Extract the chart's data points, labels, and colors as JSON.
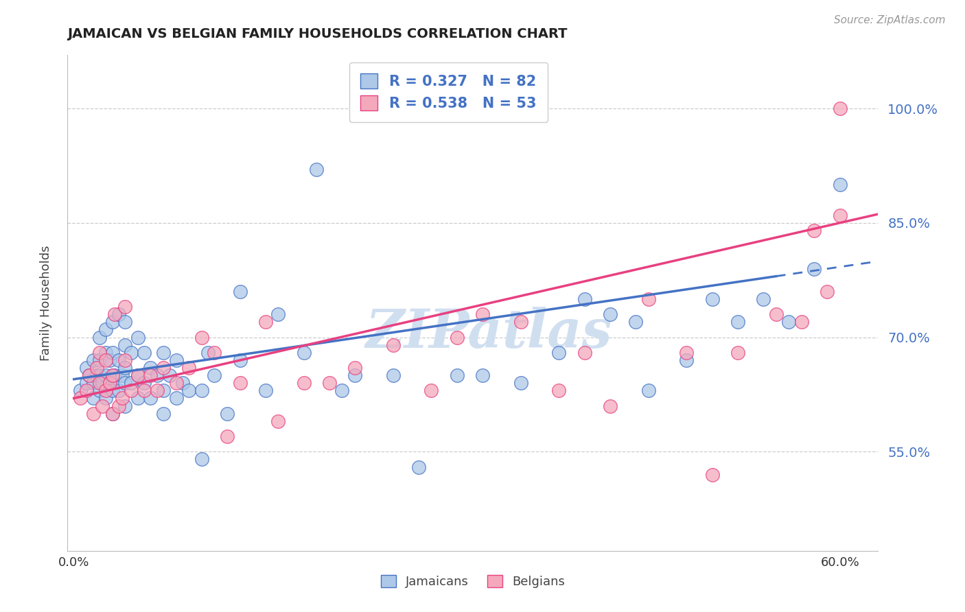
{
  "title": "JAMAICAN VS BELGIAN FAMILY HOUSEHOLDS CORRELATION CHART",
  "source": "Source: ZipAtlas.com",
  "ylabel": "Family Households",
  "legend_label1": "Jamaicans",
  "legend_label2": "Belgians",
  "R1": 0.327,
  "N1": 82,
  "R2": 0.538,
  "N2": 53,
  "xlim": [
    -0.005,
    0.63
  ],
  "ylim": [
    0.42,
    1.07
  ],
  "yticks": [
    0.55,
    0.7,
    0.85,
    1.0
  ],
  "ytick_labels": [
    "55.0%",
    "70.0%",
    "85.0%",
    "100.0%"
  ],
  "xticks": [
    0.0,
    0.1,
    0.2,
    0.3,
    0.4,
    0.5,
    0.6
  ],
  "xtick_labels": [
    "0.0%",
    "",
    "",
    "",
    "",
    "",
    "60.0%"
  ],
  "color_blue": "#adc8e8",
  "color_pink": "#f4a8bc",
  "color_line_blue": "#4472c4",
  "color_line_pink": "#e84080",
  "color_axis_right": "#4472c4",
  "background": "#ffffff",
  "watermark": "ZIPatlas",
  "watermark_color": "#d0dff0",
  "jamaican_x": [
    0.005,
    0.01,
    0.01,
    0.012,
    0.015,
    0.015,
    0.015,
    0.018,
    0.02,
    0.02,
    0.02,
    0.02,
    0.022,
    0.025,
    0.025,
    0.025,
    0.025,
    0.028,
    0.028,
    0.03,
    0.03,
    0.03,
    0.03,
    0.03,
    0.032,
    0.035,
    0.035,
    0.035,
    0.038,
    0.04,
    0.04,
    0.04,
    0.04,
    0.04,
    0.045,
    0.045,
    0.05,
    0.05,
    0.05,
    0.055,
    0.055,
    0.06,
    0.06,
    0.065,
    0.07,
    0.07,
    0.07,
    0.075,
    0.08,
    0.08,
    0.085,
    0.09,
    0.1,
    0.1,
    0.105,
    0.11,
    0.12,
    0.13,
    0.13,
    0.15,
    0.16,
    0.18,
    0.19,
    0.21,
    0.22,
    0.25,
    0.27,
    0.3,
    0.32,
    0.35,
    0.38,
    0.4,
    0.42,
    0.44,
    0.45,
    0.48,
    0.5,
    0.52,
    0.54,
    0.56,
    0.58,
    0.6
  ],
  "jamaican_y": [
    0.63,
    0.64,
    0.66,
    0.65,
    0.62,
    0.64,
    0.67,
    0.65,
    0.63,
    0.65,
    0.67,
    0.7,
    0.64,
    0.62,
    0.65,
    0.68,
    0.71,
    0.64,
    0.67,
    0.6,
    0.63,
    0.65,
    0.68,
    0.72,
    0.65,
    0.63,
    0.67,
    0.73,
    0.65,
    0.61,
    0.64,
    0.66,
    0.69,
    0.72,
    0.64,
    0.68,
    0.62,
    0.65,
    0.7,
    0.64,
    0.68,
    0.62,
    0.66,
    0.65,
    0.6,
    0.63,
    0.68,
    0.65,
    0.62,
    0.67,
    0.64,
    0.63,
    0.54,
    0.63,
    0.68,
    0.65,
    0.6,
    0.67,
    0.76,
    0.63,
    0.73,
    0.68,
    0.92,
    0.63,
    0.65,
    0.65,
    0.53,
    0.65,
    0.65,
    0.64,
    0.68,
    0.75,
    0.73,
    0.72,
    0.63,
    0.67,
    0.75,
    0.72,
    0.75,
    0.72,
    0.79,
    0.9
  ],
  "belgian_x": [
    0.005,
    0.01,
    0.012,
    0.015,
    0.018,
    0.02,
    0.02,
    0.022,
    0.025,
    0.025,
    0.028,
    0.03,
    0.03,
    0.032,
    0.035,
    0.038,
    0.04,
    0.04,
    0.045,
    0.05,
    0.055,
    0.06,
    0.065,
    0.07,
    0.08,
    0.09,
    0.1,
    0.11,
    0.12,
    0.13,
    0.15,
    0.16,
    0.18,
    0.2,
    0.22,
    0.25,
    0.28,
    0.3,
    0.32,
    0.35,
    0.38,
    0.4,
    0.42,
    0.45,
    0.48,
    0.5,
    0.52,
    0.55,
    0.57,
    0.58,
    0.59,
    0.6,
    0.6
  ],
  "belgian_y": [
    0.62,
    0.63,
    0.65,
    0.6,
    0.66,
    0.64,
    0.68,
    0.61,
    0.63,
    0.67,
    0.64,
    0.6,
    0.65,
    0.73,
    0.61,
    0.62,
    0.67,
    0.74,
    0.63,
    0.65,
    0.63,
    0.65,
    0.63,
    0.66,
    0.64,
    0.66,
    0.7,
    0.68,
    0.57,
    0.64,
    0.72,
    0.59,
    0.64,
    0.64,
    0.66,
    0.69,
    0.63,
    0.7,
    0.73,
    0.72,
    0.63,
    0.68,
    0.61,
    0.75,
    0.68,
    0.52,
    0.68,
    0.73,
    0.72,
    0.84,
    0.76,
    0.86,
    1.0
  ]
}
